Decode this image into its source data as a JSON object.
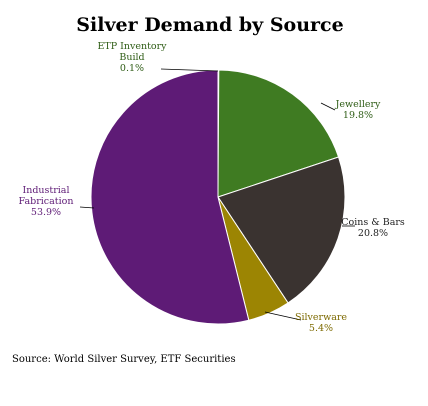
{
  "chart_data": {
    "type": "pie",
    "title": "Silver Demand by Source",
    "source": "Source: World Silver Survey, ETF Securities",
    "slices": [
      {
        "label_lines": [
          "ETP Inventory",
          "Build"
        ],
        "value": 0.1,
        "value_label": "0.1%",
        "color": "#4c7f2a"
      },
      {
        "label_lines": [
          "Jewellery"
        ],
        "value": 19.8,
        "value_label": "19.8%",
        "color": "#3f7b22"
      },
      {
        "label_lines": [
          "Coins & Bars"
        ],
        "value": 20.8,
        "value_label": "20.8%",
        "color": "#3a3330"
      },
      {
        "label_lines": [
          "Silverware"
        ],
        "value": 5.4,
        "value_label": "5.4%",
        "color": "#9c8503"
      },
      {
        "label_lines": [
          "Industrial",
          "Fabrication"
        ],
        "value": 53.9,
        "value_label": "53.9%",
        "color": "#5e1b76"
      }
    ],
    "label_colors": [
      "#2f5d16",
      "#2f5d16",
      "#1f1f1f",
      "#7d6a00",
      "#5e1b76"
    ],
    "start": "top",
    "direction": "clockwise",
    "legend": "none"
  }
}
